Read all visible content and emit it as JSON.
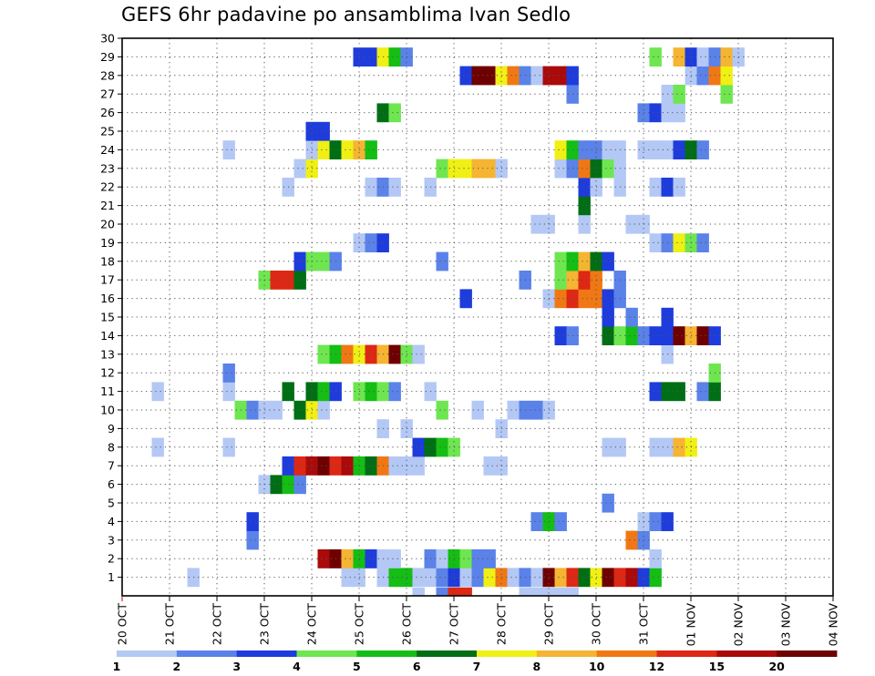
{
  "chart_data": {
    "type": "heatmap",
    "title": "GEFS 6hr padavine po ansamblima Ivan Sedlo",
    "xlabel": "",
    "ylabel": "",
    "x_tick_labels": [
      "20 OCT",
      "21 OCT",
      "22 OCT",
      "23 OCT",
      "24 OCT",
      "25 OCT",
      "26 OCT",
      "27 OCT",
      "28 OCT",
      "29 OCT",
      "30 OCT",
      "31 OCT",
      "01 NOV",
      "02 NOV",
      "03 NOV",
      "04 NOV"
    ],
    "x_range_days": [
      0,
      15
    ],
    "y_tick_labels": [
      "1",
      "2",
      "3",
      "4",
      "5",
      "6",
      "7",
      "8",
      "9",
      "10",
      "11",
      "12",
      "13",
      "14",
      "15",
      "16",
      "17",
      "18",
      "19",
      "20",
      "21",
      "22",
      "23",
      "24",
      "25",
      "26",
      "27",
      "28",
      "29",
      "30"
    ],
    "y_range": [
      0,
      30
    ],
    "grid": true,
    "legend": {
      "position": "bottom",
      "labels": [
        "1",
        "2",
        "3",
        "4",
        "5",
        "6",
        "7",
        "8",
        "10",
        "12",
        "15",
        "20"
      ],
      "colors": [
        "#b4c8f5",
        "#5a82e8",
        "#1e3cdc",
        "#6ee650",
        "#14be14",
        "#006e14",
        "#f0f014",
        "#f5b432",
        "#f07814",
        "#dc2814",
        "#aa0a0a",
        "#6e0000"
      ]
    },
    "colors": [
      "#b4c8f5",
      "#5a82e8",
      "#1e3cdc",
      "#6ee650",
      "#14be14",
      "#006e14",
      "#f0f014",
      "#f5b432",
      "#f07814",
      "#dc2814",
      "#aa0a0a",
      "#6e0000"
    ],
    "data": [
      [
        1,
        [
          [
            1.5,
            1
          ],
          [
            4.75,
            1
          ],
          [
            5,
            1
          ],
          [
            5.5,
            1
          ],
          [
            5.75,
            5
          ],
          [
            6,
            5
          ],
          [
            6.25,
            1
          ],
          [
            6.5,
            1
          ],
          [
            6.75,
            2
          ],
          [
            7,
            3
          ],
          [
            7.25,
            1
          ],
          [
            7.5,
            2
          ],
          [
            7.75,
            7
          ],
          [
            8,
            9
          ],
          [
            8.25,
            1
          ],
          [
            8.5,
            2
          ],
          [
            8.75,
            1
          ],
          [
            9,
            12
          ],
          [
            9.25,
            8
          ],
          [
            9.5,
            10
          ],
          [
            9.75,
            6
          ],
          [
            10,
            7
          ],
          [
            10.25,
            12
          ],
          [
            10.5,
            10
          ],
          [
            10.75,
            11
          ],
          [
            11,
            3
          ],
          [
            11.25,
            5
          ]
        ]
      ],
      [
        2,
        [
          [
            4.25,
            11
          ],
          [
            4.5,
            12
          ],
          [
            4.75,
            8
          ],
          [
            5,
            5
          ],
          [
            5.25,
            3
          ],
          [
            5.5,
            1
          ],
          [
            5.75,
            1
          ],
          [
            6.5,
            2
          ],
          [
            6.75,
            1
          ],
          [
            7,
            5
          ],
          [
            7.25,
            4
          ],
          [
            7.5,
            2
          ],
          [
            7.75,
            2
          ],
          [
            11.25,
            1
          ]
        ]
      ],
      [
        3,
        [
          [
            2.75,
            2
          ],
          [
            10.75,
            9
          ],
          [
            11,
            2
          ]
        ]
      ],
      [
        4,
        [
          [
            2.75,
            3
          ],
          [
            8.75,
            2
          ],
          [
            9,
            5
          ],
          [
            9.25,
            2
          ],
          [
            11,
            1
          ],
          [
            11.25,
            2
          ],
          [
            11.5,
            3
          ]
        ]
      ],
      [
        5,
        [
          [
            10.25,
            2
          ]
        ]
      ],
      [
        6,
        [
          [
            3,
            1
          ],
          [
            3.25,
            6
          ],
          [
            3.5,
            5
          ],
          [
            3.75,
            2
          ]
        ]
      ],
      [
        7,
        [
          [
            3.5,
            3
          ],
          [
            3.75,
            10
          ],
          [
            4,
            11
          ],
          [
            4.25,
            12
          ],
          [
            4.5,
            10
          ],
          [
            4.75,
            11
          ],
          [
            5,
            5
          ],
          [
            5.25,
            6
          ],
          [
            5.5,
            9
          ],
          [
            5.75,
            1
          ],
          [
            6,
            1
          ],
          [
            6.25,
            1
          ],
          [
            7.75,
            1
          ],
          [
            8,
            1
          ]
        ]
      ],
      [
        8,
        [
          [
            0.75,
            1
          ],
          [
            2.25,
            1
          ],
          [
            6.25,
            3
          ],
          [
            6.5,
            6
          ],
          [
            6.75,
            5
          ],
          [
            7,
            4
          ],
          [
            10.25,
            1
          ],
          [
            10.5,
            1
          ],
          [
            11.25,
            1
          ],
          [
            11.5,
            1
          ],
          [
            11.75,
            8
          ],
          [
            12,
            7
          ]
        ]
      ],
      [
        9,
        [
          [
            5.5,
            1
          ],
          [
            6,
            1
          ],
          [
            8,
            1
          ]
        ]
      ],
      [
        10,
        [
          [
            2.5,
            4
          ],
          [
            2.75,
            2
          ],
          [
            3,
            1
          ],
          [
            3.25,
            1
          ],
          [
            3.75,
            6
          ],
          [
            4,
            7
          ],
          [
            4.25,
            1
          ],
          [
            6.75,
            4
          ],
          [
            7.5,
            1
          ],
          [
            8.25,
            1
          ],
          [
            8.5,
            2
          ],
          [
            8.75,
            2
          ],
          [
            9,
            1
          ]
        ]
      ],
      [
        11,
        [
          [
            0.75,
            1
          ],
          [
            2.25,
            1
          ],
          [
            3.5,
            6
          ],
          [
            4,
            6
          ],
          [
            4.25,
            5
          ],
          [
            4.5,
            3
          ],
          [
            5,
            4
          ],
          [
            5.25,
            5
          ],
          [
            5.5,
            4
          ],
          [
            5.75,
            2
          ],
          [
            6.5,
            1
          ],
          [
            11.25,
            3
          ],
          [
            11.5,
            6
          ],
          [
            11.75,
            6
          ],
          [
            12.25,
            2
          ],
          [
            12.5,
            6
          ]
        ]
      ],
      [
        12,
        [
          [
            2.25,
            2
          ],
          [
            12.5,
            4
          ]
        ]
      ],
      [
        13,
        [
          [
            4.25,
            4
          ],
          [
            4.5,
            5
          ],
          [
            4.75,
            9
          ],
          [
            5,
            7
          ],
          [
            5.25,
            10
          ],
          [
            5.5,
            8
          ],
          [
            5.75,
            12
          ],
          [
            6,
            4
          ],
          [
            6.25,
            1
          ],
          [
            11.5,
            1
          ]
        ]
      ],
      [
        14,
        [
          [
            9.25,
            3
          ],
          [
            9.5,
            2
          ],
          [
            10.25,
            6
          ],
          [
            10.5,
            4
          ],
          [
            10.75,
            5
          ],
          [
            11,
            2
          ],
          [
            11.25,
            3
          ],
          [
            11.5,
            3
          ],
          [
            11.75,
            12
          ],
          [
            12,
            8
          ],
          [
            12.25,
            12
          ],
          [
            12.5,
            3
          ]
        ]
      ],
      [
        15,
        [
          [
            10.25,
            3
          ],
          [
            10.75,
            2
          ],
          [
            11.5,
            3
          ]
        ]
      ],
      [
        16,
        [
          [
            7.25,
            3
          ],
          [
            9,
            1
          ],
          [
            9.25,
            9
          ],
          [
            9.5,
            10
          ],
          [
            9.75,
            9
          ],
          [
            10,
            9
          ],
          [
            10.25,
            3
          ],
          [
            10.5,
            2
          ]
        ]
      ],
      [
        17,
        [
          [
            3,
            4
          ],
          [
            3.25,
            10
          ],
          [
            3.5,
            10
          ],
          [
            3.75,
            6
          ],
          [
            8.5,
            2
          ],
          [
            9.25,
            4
          ],
          [
            9.5,
            8
          ],
          [
            9.75,
            10
          ],
          [
            10,
            9
          ],
          [
            10.5,
            2
          ]
        ]
      ],
      [
        18,
        [
          [
            3.75,
            3
          ],
          [
            4,
            4
          ],
          [
            4.25,
            4
          ],
          [
            4.5,
            2
          ],
          [
            6.75,
            2
          ],
          [
            9.25,
            4
          ],
          [
            9.5,
            5
          ],
          [
            9.75,
            8
          ],
          [
            10,
            6
          ],
          [
            10.25,
            3
          ]
        ]
      ],
      [
        19,
        [
          [
            5,
            1
          ],
          [
            5.25,
            2
          ],
          [
            5.5,
            3
          ],
          [
            11.25,
            1
          ],
          [
            11.5,
            2
          ],
          [
            11.75,
            7
          ],
          [
            12,
            4
          ],
          [
            12.25,
            2
          ]
        ]
      ],
      [
        20,
        [
          [
            8.75,
            1
          ],
          [
            9,
            1
          ],
          [
            9.75,
            1
          ],
          [
            10.75,
            1
          ],
          [
            11,
            1
          ]
        ]
      ],
      [
        21,
        [
          [
            9.75,
            6
          ]
        ]
      ],
      [
        22,
        [
          [
            3.5,
            1
          ],
          [
            5.25,
            1
          ],
          [
            5.5,
            2
          ],
          [
            5.75,
            1
          ],
          [
            6.5,
            1
          ],
          [
            9.75,
            3
          ],
          [
            10,
            1
          ],
          [
            10.5,
            1
          ],
          [
            11.25,
            1
          ],
          [
            11.5,
            3
          ],
          [
            11.75,
            1
          ]
        ]
      ],
      [
        23,
        [
          [
            3.75,
            1
          ],
          [
            4,
            7
          ],
          [
            6.75,
            4
          ],
          [
            7,
            7
          ],
          [
            7.25,
            7
          ],
          [
            7.5,
            8
          ],
          [
            7.75,
            8
          ],
          [
            8,
            1
          ],
          [
            9.25,
            1
          ],
          [
            9.5,
            2
          ],
          [
            9.75,
            9
          ],
          [
            10,
            6
          ],
          [
            10.25,
            4
          ],
          [
            10.5,
            1
          ]
        ]
      ],
      [
        24,
        [
          [
            2.25,
            1
          ],
          [
            4,
            1
          ],
          [
            4.25,
            7
          ],
          [
            4.5,
            6
          ],
          [
            4.75,
            7
          ],
          [
            5,
            8
          ],
          [
            5.25,
            5
          ],
          [
            9.25,
            7
          ],
          [
            9.5,
            5
          ],
          [
            9.75,
            2
          ],
          [
            10,
            2
          ],
          [
            10.25,
            1
          ],
          [
            10.5,
            1
          ],
          [
            11,
            1
          ],
          [
            11.25,
            1
          ],
          [
            11.5,
            1
          ],
          [
            11.75,
            3
          ],
          [
            12,
            6
          ],
          [
            12.25,
            2
          ]
        ]
      ],
      [
        25,
        [
          [
            4,
            3
          ],
          [
            4.25,
            3
          ]
        ]
      ],
      [
        26,
        [
          [
            5.5,
            6
          ],
          [
            5.75,
            4
          ],
          [
            11,
            2
          ],
          [
            11.25,
            3
          ],
          [
            11.5,
            1
          ],
          [
            11.75,
            1
          ]
        ]
      ],
      [
        27,
        [
          [
            9.5,
            2
          ],
          [
            11.5,
            1
          ],
          [
            11.75,
            4
          ],
          [
            12.75,
            4
          ]
        ]
      ],
      [
        28,
        [
          [
            7.25,
            3
          ],
          [
            7.5,
            12
          ],
          [
            7.75,
            12
          ],
          [
            8,
            7
          ],
          [
            8.25,
            9
          ],
          [
            8.5,
            2
          ],
          [
            8.75,
            1
          ],
          [
            9,
            11
          ],
          [
            9.25,
            11
          ],
          [
            9.5,
            3
          ],
          [
            12,
            1
          ],
          [
            12.25,
            2
          ],
          [
            12.5,
            9
          ],
          [
            12.75,
            7
          ]
        ]
      ],
      [
        29,
        [
          [
            5,
            3
          ],
          [
            5.25,
            3
          ],
          [
            5.5,
            7
          ],
          [
            5.75,
            5
          ],
          [
            6,
            2
          ],
          [
            11.25,
            4
          ],
          [
            11.75,
            8
          ],
          [
            12,
            3
          ],
          [
            12.25,
            1
          ],
          [
            12.5,
            2
          ],
          [
            12.75,
            8
          ],
          [
            13,
            1
          ]
        ]
      ]
    ],
    "row0_stubs": [
      [
        6.25,
        1
      ],
      [
        6.75,
        2
      ],
      [
        7,
        10
      ],
      [
        7.25,
        10
      ],
      [
        8.5,
        1
      ],
      [
        8.75,
        1
      ],
      [
        9,
        1
      ],
      [
        9.25,
        1
      ],
      [
        9.5,
        1
      ]
    ]
  }
}
